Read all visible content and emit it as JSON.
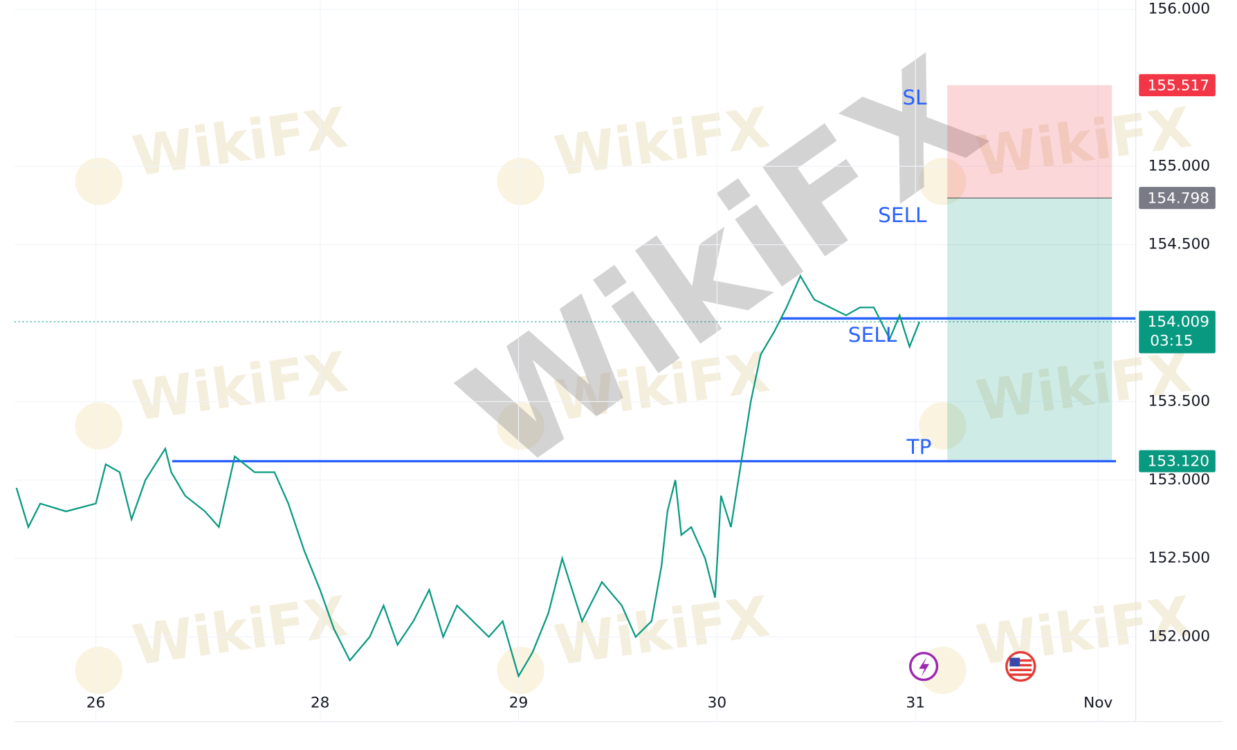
{
  "chart_data": {
    "type": "line",
    "watermark": "WikiFX",
    "series": [
      {
        "color": "#089981",
        "x": [
          -0.4,
          -0.34,
          -0.28,
          -0.15,
          0.0,
          0.05,
          0.12,
          0.18,
          0.25,
          0.35,
          0.38,
          0.45,
          0.55,
          0.62,
          0.7,
          0.8,
          0.9,
          0.97,
          1.05,
          1.13,
          1.2,
          1.28,
          1.38,
          1.45,
          1.52,
          1.6,
          1.68,
          1.75,
          1.82,
          1.9,
          1.98,
          2.05,
          2.13,
          2.2,
          2.28,
          2.35,
          2.45,
          2.55,
          2.65,
          2.72,
          2.8,
          2.85,
          2.88,
          2.92,
          2.95,
          3.0,
          3.07,
          3.12,
          3.15,
          3.2,
          3.25,
          3.3,
          3.35,
          3.42,
          3.48,
          3.55,
          3.62,
          3.7,
          3.78,
          3.85,
          3.92,
          4.0,
          4.05,
          4.1,
          4.15
        ],
        "values": [
          152.95,
          152.7,
          152.85,
          152.8,
          152.85,
          153.1,
          153.05,
          152.75,
          153.0,
          153.2,
          153.05,
          152.9,
          152.8,
          152.7,
          153.15,
          153.05,
          153.05,
          152.85,
          152.55,
          152.3,
          152.05,
          151.85,
          152.0,
          152.2,
          151.95,
          152.1,
          152.3,
          152.0,
          152.2,
          152.1,
          152.0,
          152.1,
          151.75,
          151.9,
          152.15,
          152.5,
          152.1,
          152.35,
          152.2,
          152.0,
          152.1,
          152.45,
          152.8,
          153.0,
          152.65,
          152.7,
          152.5,
          152.25,
          152.9,
          152.7,
          153.1,
          153.5,
          153.8,
          153.95,
          154.1,
          154.3,
          154.15,
          154.1,
          154.05,
          154.1,
          154.1,
          153.9,
          154.05,
          153.85,
          154.009
        ]
      }
    ],
    "xlim": [
      -0.41,
      5.24
    ],
    "ylim": [
      151.46,
      156.06
    ],
    "xticks": [
      {
        "value": 0,
        "label": "26"
      },
      {
        "value": 1.13,
        "label": "28"
      },
      {
        "value": 2.13,
        "label": "29"
      },
      {
        "value": 3.13,
        "label": "30"
      },
      {
        "value": 4.13,
        "label": "31"
      },
      {
        "value": 5.05,
        "label": "Nov"
      }
    ],
    "yticks": [
      {
        "value": 156,
        "label": "156.000"
      },
      {
        "value": 155,
        "label": "155.000"
      },
      {
        "value": 154.5,
        "label": "154.500"
      },
      {
        "value": 153.5,
        "label": "153.500"
      },
      {
        "value": 153,
        "label": "153.000"
      },
      {
        "value": 152.5,
        "label": "152.500"
      },
      {
        "value": 152,
        "label": "152.000"
      }
    ],
    "grid": true,
    "position": {
      "x_start": 4.29,
      "x_end": 5.12,
      "stop": {
        "value": 155.517,
        "label": "155.517",
        "color": "#f23645"
      },
      "entry": {
        "value": 154.798,
        "label": "154.798",
        "color": "#787b86"
      },
      "target": {
        "value": 153.12,
        "label": "153.120",
        "color": "#089981"
      }
    },
    "current_price": {
      "value": 154.009,
      "label": "154.009",
      "countdown": "03:15",
      "color": "#089981"
    },
    "levels": [
      {
        "value": 154.03,
        "x_start": 3.45,
        "x_end": 5.24
      },
      {
        "value": 153.12,
        "x_start": 0.385,
        "x_end": 5.14
      }
    ],
    "annotations": [
      "SL",
      "SELL",
      "SELL",
      "TP"
    ]
  }
}
